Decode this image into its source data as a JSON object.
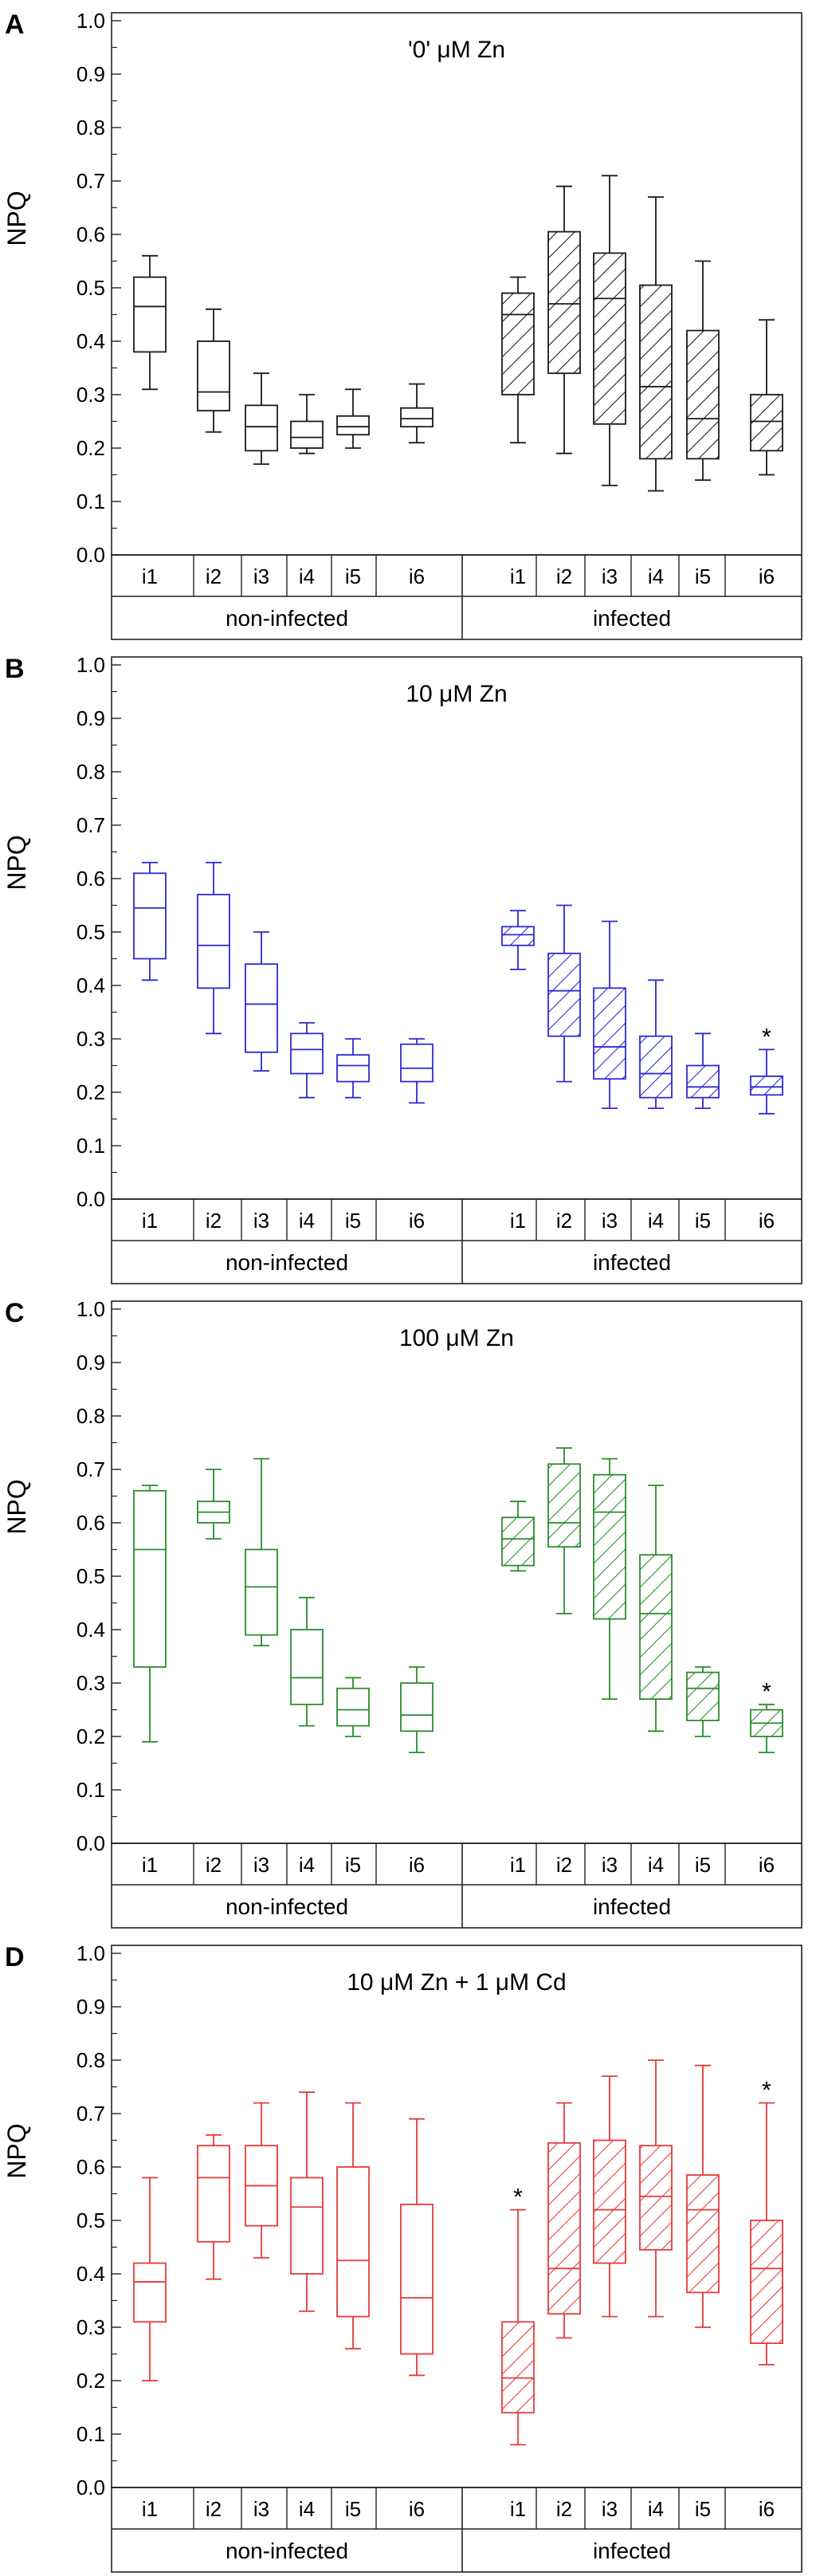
{
  "figure": {
    "y_axis_label": "NPQ",
    "y_tick_labels": [
      "0.0",
      "0.1",
      "0.2",
      "0.3",
      "0.4",
      "0.5",
      "0.6",
      "0.7",
      "0.8",
      "0.9",
      "1.0"
    ],
    "group_labels": [
      "non-infected",
      "infected"
    ],
    "category_labels": [
      "i1",
      "i2",
      "i3",
      "i4",
      "i5",
      "i6"
    ]
  },
  "chart_data": [
    {
      "type": "box",
      "panel": "A",
      "title": "'0' μM Zn",
      "color": "#1a1a1a",
      "ylabel": "NPQ",
      "ylim": [
        0,
        1.0
      ],
      "groups": [
        "non-infected",
        "infected"
      ],
      "categories": [
        "i1",
        "i2",
        "i3",
        "i4",
        "i5",
        "i6"
      ],
      "series": [
        {
          "name": "non-infected",
          "hatched": false,
          "boxes": [
            {
              "category": "i1",
              "min": 0.31,
              "q1": 0.38,
              "median": 0.465,
              "q3": 0.52,
              "max": 0.56
            },
            {
              "category": "i2",
              "min": 0.23,
              "q1": 0.27,
              "median": 0.305,
              "q3": 0.4,
              "max": 0.46
            },
            {
              "category": "i3",
              "min": 0.17,
              "q1": 0.195,
              "median": 0.24,
              "q3": 0.28,
              "max": 0.34
            },
            {
              "category": "i4",
              "min": 0.19,
              "q1": 0.2,
              "median": 0.22,
              "q3": 0.25,
              "max": 0.3
            },
            {
              "category": "i5",
              "min": 0.2,
              "q1": 0.225,
              "median": 0.24,
              "q3": 0.26,
              "max": 0.31
            },
            {
              "category": "i6",
              "min": 0.21,
              "q1": 0.24,
              "median": 0.255,
              "q3": 0.275,
              "max": 0.32
            }
          ]
        },
        {
          "name": "infected",
          "hatched": true,
          "boxes": [
            {
              "category": "i1",
              "min": 0.21,
              "q1": 0.3,
              "median": 0.45,
              "q3": 0.49,
              "max": 0.52
            },
            {
              "category": "i2",
              "min": 0.19,
              "q1": 0.34,
              "median": 0.47,
              "q3": 0.605,
              "max": 0.69
            },
            {
              "category": "i3",
              "min": 0.13,
              "q1": 0.245,
              "median": 0.48,
              "q3": 0.565,
              "max": 0.71
            },
            {
              "category": "i4",
              "min": 0.12,
              "q1": 0.18,
              "median": 0.315,
              "q3": 0.505,
              "max": 0.67
            },
            {
              "category": "i5",
              "min": 0.14,
              "q1": 0.18,
              "median": 0.255,
              "q3": 0.42,
              "max": 0.55
            },
            {
              "category": "i6",
              "min": 0.15,
              "q1": 0.195,
              "median": 0.25,
              "q3": 0.3,
              "max": 0.44
            }
          ]
        }
      ],
      "annotations": []
    },
    {
      "type": "box",
      "panel": "B",
      "title": "10 μM Zn",
      "color": "#2b2bd6",
      "ylabel": "NPQ",
      "ylim": [
        0,
        1.0
      ],
      "groups": [
        "non-infected",
        "infected"
      ],
      "categories": [
        "i1",
        "i2",
        "i3",
        "i4",
        "i5",
        "i6"
      ],
      "series": [
        {
          "name": "non-infected",
          "hatched": false,
          "boxes": [
            {
              "category": "i1",
              "min": 0.41,
              "q1": 0.45,
              "median": 0.545,
              "q3": 0.61,
              "max": 0.63
            },
            {
              "category": "i2",
              "min": 0.31,
              "q1": 0.395,
              "median": 0.475,
              "q3": 0.57,
              "max": 0.63
            },
            {
              "category": "i3",
              "min": 0.24,
              "q1": 0.275,
              "median": 0.365,
              "q3": 0.44,
              "max": 0.5
            },
            {
              "category": "i4",
              "min": 0.19,
              "q1": 0.235,
              "median": 0.28,
              "q3": 0.31,
              "max": 0.33
            },
            {
              "category": "i5",
              "min": 0.19,
              "q1": 0.22,
              "median": 0.25,
              "q3": 0.27,
              "max": 0.3
            },
            {
              "category": "i6",
              "min": 0.18,
              "q1": 0.22,
              "median": 0.245,
              "q3": 0.29,
              "max": 0.3
            }
          ]
        },
        {
          "name": "infected",
          "hatched": true,
          "boxes": [
            {
              "category": "i1",
              "min": 0.43,
              "q1": 0.475,
              "median": 0.495,
              "q3": 0.51,
              "max": 0.54
            },
            {
              "category": "i2",
              "min": 0.22,
              "q1": 0.305,
              "median": 0.39,
              "q3": 0.46,
              "max": 0.55
            },
            {
              "category": "i3",
              "min": 0.17,
              "q1": 0.225,
              "median": 0.285,
              "q3": 0.395,
              "max": 0.52
            },
            {
              "category": "i4",
              "min": 0.17,
              "q1": 0.19,
              "median": 0.235,
              "q3": 0.305,
              "max": 0.41
            },
            {
              "category": "i5",
              "min": 0.17,
              "q1": 0.19,
              "median": 0.21,
              "q3": 0.25,
              "max": 0.31
            },
            {
              "category": "i6",
              "min": 0.16,
              "q1": 0.195,
              "median": 0.21,
              "q3": 0.23,
              "max": 0.28
            }
          ]
        }
      ],
      "annotations": [
        {
          "text": "*",
          "group": "infected",
          "category": "i6",
          "y": 0.31
        }
      ]
    },
    {
      "type": "box",
      "panel": "C",
      "title": "100 μM Zn",
      "color": "#2e8b2e",
      "ylabel": "NPQ",
      "ylim": [
        0,
        1.0
      ],
      "groups": [
        "non-infected",
        "infected"
      ],
      "categories": [
        "i1",
        "i2",
        "i3",
        "i4",
        "i5",
        "i6"
      ],
      "series": [
        {
          "name": "non-infected",
          "hatched": false,
          "boxes": [
            {
              "category": "i1",
              "min": 0.19,
              "q1": 0.33,
              "median": 0.55,
              "q3": 0.66,
              "max": 0.67
            },
            {
              "category": "i2",
              "min": 0.57,
              "q1": 0.6,
              "median": 0.62,
              "q3": 0.64,
              "max": 0.7
            },
            {
              "category": "i3",
              "min": 0.37,
              "q1": 0.39,
              "median": 0.48,
              "q3": 0.55,
              "max": 0.72
            },
            {
              "category": "i4",
              "min": 0.22,
              "q1": 0.26,
              "median": 0.31,
              "q3": 0.4,
              "max": 0.46
            },
            {
              "category": "i5",
              "min": 0.2,
              "q1": 0.22,
              "median": 0.25,
              "q3": 0.29,
              "max": 0.31
            },
            {
              "category": "i6",
              "min": 0.17,
              "q1": 0.21,
              "median": 0.24,
              "q3": 0.3,
              "max": 0.33
            }
          ]
        },
        {
          "name": "infected",
          "hatched": true,
          "boxes": [
            {
              "category": "i1",
              "min": 0.51,
              "q1": 0.52,
              "median": 0.57,
              "q3": 0.61,
              "max": 0.64
            },
            {
              "category": "i2",
              "min": 0.43,
              "q1": 0.555,
              "median": 0.6,
              "q3": 0.71,
              "max": 0.74
            },
            {
              "category": "i3",
              "min": 0.27,
              "q1": 0.42,
              "median": 0.62,
              "q3": 0.69,
              "max": 0.72
            },
            {
              "category": "i4",
              "min": 0.21,
              "q1": 0.27,
              "median": 0.43,
              "q3": 0.54,
              "max": 0.67
            },
            {
              "category": "i5",
              "min": 0.2,
              "q1": 0.23,
              "median": 0.29,
              "q3": 0.32,
              "max": 0.33
            },
            {
              "category": "i6",
              "min": 0.17,
              "q1": 0.2,
              "median": 0.225,
              "q3": 0.25,
              "max": 0.26
            }
          ]
        }
      ],
      "annotations": [
        {
          "text": "*",
          "group": "infected",
          "category": "i6",
          "y": 0.29
        }
      ]
    },
    {
      "type": "box",
      "panel": "D",
      "title": "10 μM Zn + 1 μM Cd",
      "color": "#e83a3a",
      "ylabel": "NPQ",
      "ylim": [
        0,
        1.0
      ],
      "groups": [
        "non-infected",
        "infected"
      ],
      "categories": [
        "i1",
        "i2",
        "i3",
        "i4",
        "i5",
        "i6"
      ],
      "series": [
        {
          "name": "non-infected",
          "hatched": false,
          "boxes": [
            {
              "category": "i1",
              "min": 0.2,
              "q1": 0.31,
              "median": 0.385,
              "q3": 0.42,
              "max": 0.58
            },
            {
              "category": "i2",
              "min": 0.39,
              "q1": 0.46,
              "median": 0.58,
              "q3": 0.64,
              "max": 0.66
            },
            {
              "category": "i3",
              "min": 0.43,
              "q1": 0.49,
              "median": 0.565,
              "q3": 0.64,
              "max": 0.72
            },
            {
              "category": "i4",
              "min": 0.33,
              "q1": 0.4,
              "median": 0.525,
              "q3": 0.58,
              "max": 0.74
            },
            {
              "category": "i5",
              "min": 0.26,
              "q1": 0.32,
              "median": 0.425,
              "q3": 0.6,
              "max": 0.72
            },
            {
              "category": "i6",
              "min": 0.21,
              "q1": 0.25,
              "median": 0.355,
              "q3": 0.53,
              "max": 0.69
            }
          ]
        },
        {
          "name": "infected",
          "hatched": true,
          "boxes": [
            {
              "category": "i1",
              "min": 0.08,
              "q1": 0.14,
              "median": 0.205,
              "q3": 0.31,
              "max": 0.52
            },
            {
              "category": "i2",
              "min": 0.28,
              "q1": 0.325,
              "median": 0.41,
              "q3": 0.645,
              "max": 0.72
            },
            {
              "category": "i3",
              "min": 0.32,
              "q1": 0.42,
              "median": 0.52,
              "q3": 0.65,
              "max": 0.77
            },
            {
              "category": "i4",
              "min": 0.32,
              "q1": 0.445,
              "median": 0.545,
              "q3": 0.64,
              "max": 0.8
            },
            {
              "category": "i5",
              "min": 0.3,
              "q1": 0.365,
              "median": 0.52,
              "q3": 0.585,
              "max": 0.79
            },
            {
              "category": "i6",
              "min": 0.23,
              "q1": 0.27,
              "median": 0.41,
              "q3": 0.5,
              "max": 0.72
            }
          ]
        }
      ],
      "annotations": [
        {
          "text": "*",
          "group": "infected",
          "category": "i1",
          "y": 0.55
        },
        {
          "text": "*",
          "group": "infected",
          "category": "i6",
          "y": 0.75
        }
      ]
    }
  ]
}
